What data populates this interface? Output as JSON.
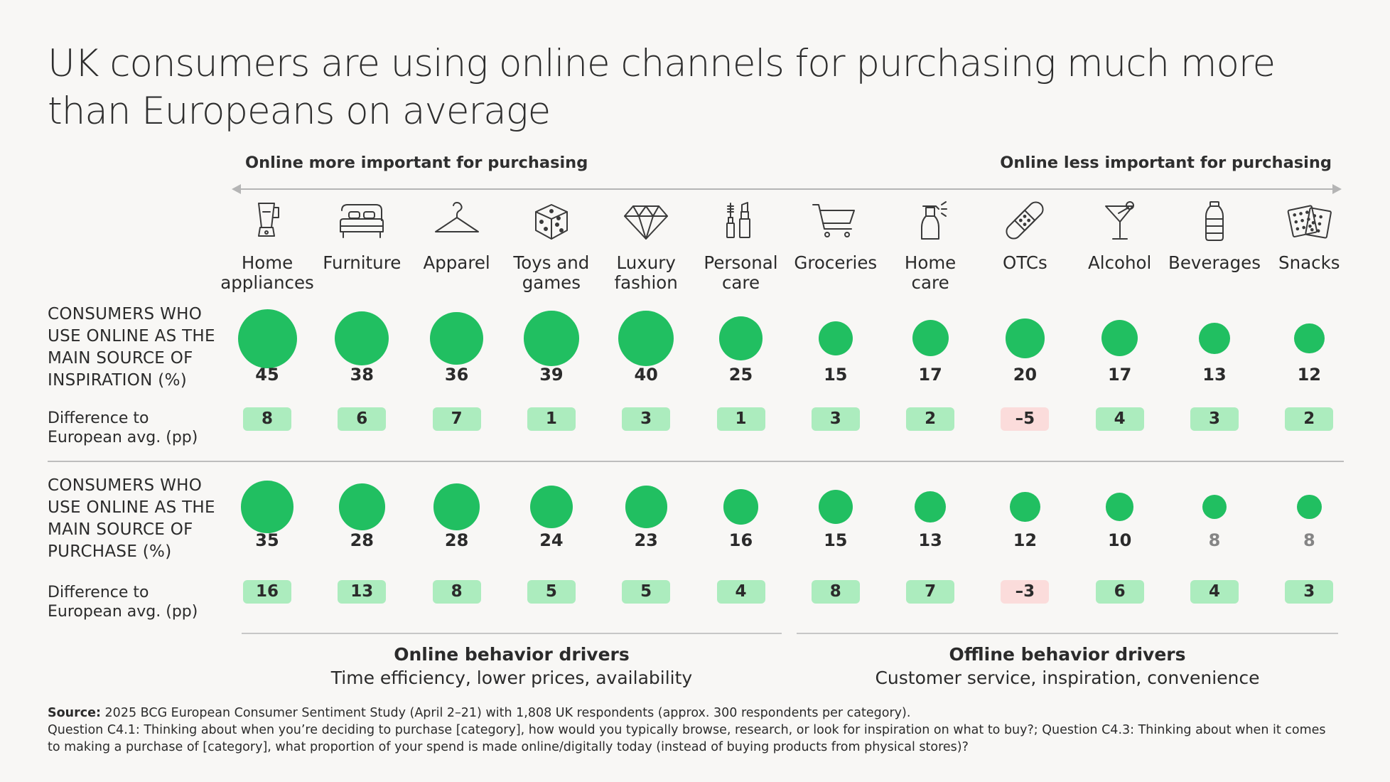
{
  "title": "UK consumers are using online channels for purchasing much more than Europeans on average",
  "direction_left": "Online more important for purchasing",
  "direction_right": "Online less important for purchasing",
  "row_labels": {
    "inspiration": [
      "CONSUMERS WHO",
      "USE ONLINE AS THE",
      "MAIN SOURCE OF",
      "INSPIRATION (%)"
    ],
    "purchase": [
      "CONSUMERS WHO",
      "USE ONLINE AS THE",
      "MAIN SOURCE OF",
      "PURCHASE (%)"
    ],
    "diff": [
      "Difference to",
      "European avg. (pp)"
    ]
  },
  "drivers": {
    "online_title": "Online behavior drivers",
    "online_sub": "Time efficiency, lower prices, availability",
    "offline_title": "Offline behavior drivers",
    "offline_sub": "Customer service, inspiration, convenience"
  },
  "source": {
    "label": "Source:",
    "line1": "2025 BCG European Consumer Sentiment Study (April 2–21) with 1,808 UK respondents (approx. 300 respondents per category).",
    "line2": "Question C4.1: Thinking about when you’re deciding to purchase [category], how would you typically browse, research, or look for inspiration on what to buy?; Question C4.3: Thinking about when it comes to making a purchase of [category], what proportion of your spend is made online/digitally today (instead of buying products from physical stores)?"
  },
  "colors": {
    "bubble": "#21bf61",
    "badge_positive": "#acecbe",
    "badge_negative": "#fbdcdb"
  },
  "chart_data": {
    "type": "bubble-table",
    "title": "UK consumers are using online channels for purchasing much more than Europeans on average",
    "categories": [
      {
        "label": [
          "Home",
          "appliances"
        ],
        "icon": "blender-icon"
      },
      {
        "label": [
          "Furniture"
        ],
        "icon": "bed-icon"
      },
      {
        "label": [
          "Apparel"
        ],
        "icon": "hanger-icon"
      },
      {
        "label": [
          "Toys and",
          "games"
        ],
        "icon": "dice-icon"
      },
      {
        "label": [
          "Luxury",
          "fashion"
        ],
        "icon": "diamond-icon"
      },
      {
        "label": [
          "Personal",
          "care"
        ],
        "icon": "cosmetics-icon"
      },
      {
        "label": [
          "Groceries"
        ],
        "icon": "cart-icon"
      },
      {
        "label": [
          "Home",
          "care"
        ],
        "icon": "spray-bottle-icon"
      },
      {
        "label": [
          "OTCs"
        ],
        "icon": "bandage-icon"
      },
      {
        "label": [
          "Alcohol"
        ],
        "icon": "cocktail-icon"
      },
      {
        "label": [
          "Beverages"
        ],
        "icon": "bottle-icon"
      },
      {
        "label": [
          "Snacks"
        ],
        "icon": "crackers-icon"
      }
    ],
    "series": [
      {
        "name": "Consumers who use online as the main source of inspiration (%)",
        "values": [
          45,
          38,
          36,
          39,
          40,
          25,
          15,
          17,
          20,
          17,
          13,
          12
        ],
        "diff": [
          "8",
          "6",
          "7",
          "1",
          "3",
          "1",
          "3",
          "2",
          "–5",
          "4",
          "3",
          "2"
        ]
      },
      {
        "name": "Consumers who use online as the main source of purchase (%)",
        "values": [
          35,
          28,
          28,
          24,
          23,
          16,
          15,
          13,
          12,
          10,
          8,
          8
        ],
        "diff": [
          "16",
          "13",
          "8",
          "5",
          "5",
          "4",
          "8",
          "7",
          "–3",
          "6",
          "4",
          "3"
        ],
        "muted": [
          false,
          false,
          false,
          false,
          false,
          false,
          false,
          false,
          false,
          false,
          true,
          true
        ]
      }
    ]
  }
}
